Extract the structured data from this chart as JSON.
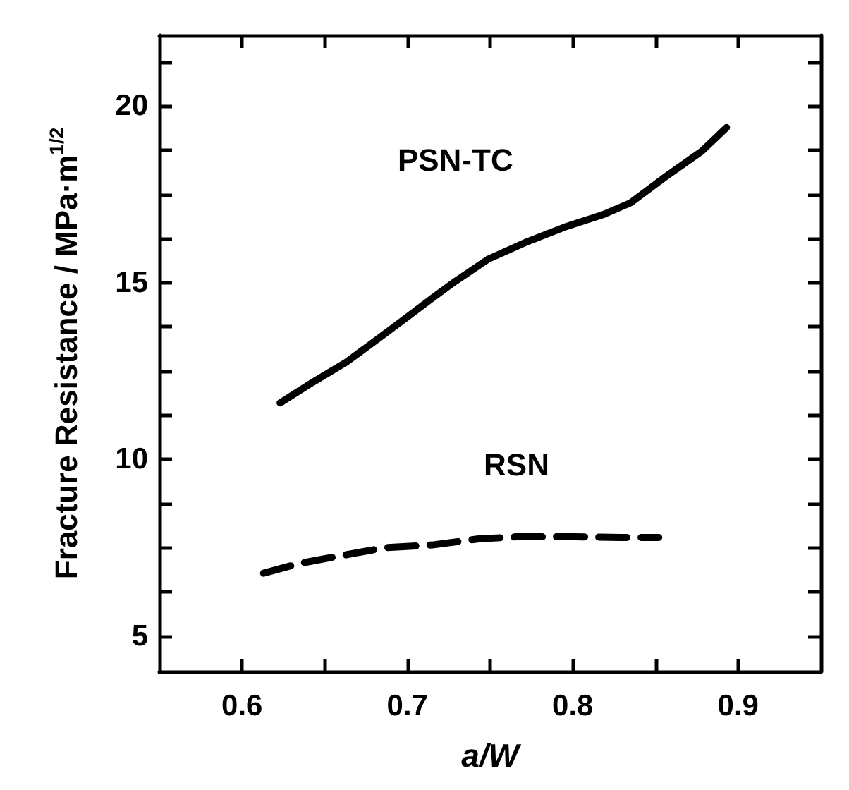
{
  "chart_data": {
    "type": "line",
    "xlabel": "a/W",
    "ylabel": "Fracture Resistance / MPa·m$^{1/2}$",
    "xlim": [
      0.55,
      0.95
    ],
    "xticks": [
      0.6,
      {
        "value": 0.65,
        "label": null
      },
      0.7,
      {
        "value": 0.75,
        "label": null
      },
      0.8,
      {
        "value": 0.85,
        "label": null
      },
      0.9
    ],
    "ylim": [
      4,
      22
    ],
    "yticks": [
      5,
      {
        "value": 6.25,
        "label": null
      },
      {
        "value": 7.5,
        "label": null
      },
      {
        "value": 8.75,
        "label": null
      },
      10,
      {
        "value": 11.25,
        "label": null
      },
      {
        "value": 12.5,
        "label": null
      },
      {
        "value": 13.75,
        "label": null
      },
      15,
      {
        "value": 16.25,
        "label": null
      },
      {
        "value": 17.5,
        "label": null
      },
      {
        "value": 18.75,
        "label": null
      },
      20,
      {
        "value": 21.25,
        "label": null
      }
    ],
    "grid": false,
    "legend": false,
    "marker": "none",
    "series": [
      {
        "name": "PSN-TC",
        "color": "#000000",
        "line_style": "solid",
        "x": [
          0.623,
          0.643,
          0.663,
          0.683,
          0.701,
          0.715,
          0.729,
          0.749,
          0.772,
          0.795,
          0.818,
          0.835,
          0.855,
          0.878,
          0.893
        ],
        "values": [
          11.6,
          12.19,
          12.75,
          13.44,
          14.07,
          14.56,
          15.04,
          15.67,
          16.15,
          16.57,
          16.92,
          17.26,
          17.96,
          18.72,
          19.39
        ]
      },
      {
        "name": "RSN",
        "color": "#000000",
        "line_style": "dashed",
        "x": [
          0.613,
          0.635,
          0.658,
          0.686,
          0.715,
          0.743,
          0.766,
          0.801,
          0.829,
          0.852
        ],
        "values": [
          6.78,
          7.06,
          7.26,
          7.5,
          7.58,
          7.75,
          7.81,
          7.81,
          7.79,
          7.79
        ]
      }
    ]
  }
}
